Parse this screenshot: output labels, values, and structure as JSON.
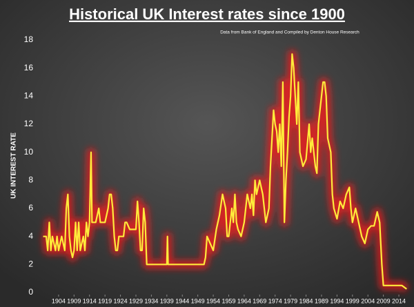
{
  "chart_data": {
    "type": "line",
    "title": "Historical UK Interest rates since 1900",
    "subtitle": "Data from Bank of England and Compiled by Denton House Research",
    "y_label": "UK  INTEREST RATE",
    "color": "#ffeb3b",
    "glow_color": "#ff1a1a",
    "x": [
      1899,
      1900,
      1900.5,
      1901,
      1901.5,
      1902,
      1903,
      1903.5,
      1904,
      1905,
      1906,
      1906.5,
      1907,
      1907.5,
      1908,
      1908.5,
      1909,
      1909.5,
      1910,
      1910.5,
      1911,
      1912,
      1912.5,
      1913,
      1913.5,
      1914,
      1914.5,
      1914.8,
      1916,
      1917,
      1917.5,
      1919,
      1920,
      1920.5,
      1921,
      1921.5,
      1922,
      1922.5,
      1923,
      1923.5,
      1925,
      1925.5,
      1926,
      1927,
      1929,
      1929.5,
      1930,
      1930.5,
      1931,
      1931.5,
      1932,
      1932.5,
      1939,
      1939.2,
      1939.4,
      1951,
      1951.5,
      1952,
      1953,
      1954,
      1955,
      1956,
      1957,
      1958,
      1958.5,
      1959,
      1960,
      1960.5,
      1961,
      1961.5,
      1962,
      1963,
      1964,
      1965,
      1966,
      1966.5,
      1967,
      1967.5,
      1968,
      1969,
      1970,
      1971,
      1972,
      1972.5,
      1973,
      1973.5,
      1974,
      1974.5,
      1975,
      1975.5,
      1976,
      1976.5,
      1977,
      1977.5,
      1978,
      1978.5,
      1979,
      1979.5,
      1980,
      1981,
      1981.5,
      1982,
      1983,
      1984,
      1985,
      1985.5,
      1986,
      1987,
      1987.5,
      1988,
      1988.5,
      1989,
      1989.5,
      1990,
      1990.5,
      1991,
      1992,
      1992.5,
      1993,
      1994,
      1995,
      1996,
      1997,
      1998,
      1998.5,
      1999,
      2000,
      2001,
      2002,
      2003,
      2004,
      2005,
      2006,
      2007,
      2007.8,
      2008.5,
      2009,
      2015,
      2016.5
    ],
    "values": [
      4,
      4,
      3,
      5,
      3,
      4,
      3,
      4,
      3,
      4,
      3,
      6,
      7,
      4,
      3,
      2.5,
      3,
      5,
      3,
      5,
      3,
      4,
      3,
      5,
      4,
      5,
      10,
      5,
      5,
      6,
      5,
      5,
      6,
      7,
      7,
      6,
      4,
      3,
      3,
      4,
      4,
      5,
      5,
      4.5,
      4.5,
      6.5,
      5,
      3,
      3,
      6,
      5,
      2,
      2,
      4,
      2,
      2,
      2.5,
      4,
      3.5,
      3,
      4.5,
      5.5,
      7,
      6,
      4,
      4,
      6,
      5,
      7,
      5,
      4.5,
      4,
      5,
      7,
      6,
      7,
      5.5,
      8,
      7,
      8,
      7,
      5,
      6,
      9,
      11,
      13,
      12,
      11.5,
      10,
      12,
      9,
      15,
      5,
      8,
      10,
      12.5,
      14,
      17,
      16,
      12,
      15,
      10,
      9,
      9.5,
      12,
      10,
      11,
      9,
      8.5,
      12,
      13,
      14,
      15,
      15,
      14,
      11,
      10,
      7,
      6,
      5.25,
      6.5,
      6,
      7,
      7.5,
      6,
      5,
      6,
      5,
      4,
      3.5,
      4.5,
      4.75,
      4.75,
      5.75,
      5,
      2,
      0.5,
      0.5,
      0.25
    ],
    "xlim": [
      1898,
      2017
    ],
    "xticks": [
      1904,
      1909,
      1914,
      1919,
      1924,
      1929,
      1934,
      1939,
      1944,
      1949,
      1954,
      1959,
      1964,
      1969,
      1974,
      1979,
      1984,
      1989,
      1994,
      1999,
      2004,
      2009,
      2014
    ],
    "ylim": [
      0,
      18
    ],
    "yticks": [
      0,
      2,
      4,
      6,
      8,
      10,
      12,
      14,
      16,
      18
    ],
    "grid": false
  }
}
